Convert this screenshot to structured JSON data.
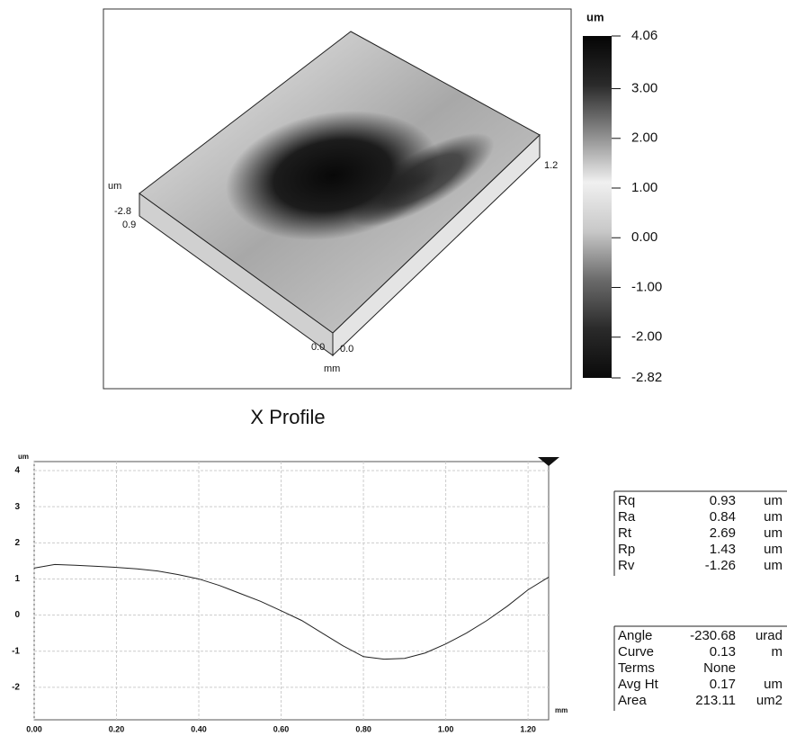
{
  "chart_data": [
    {
      "type": "surface",
      "zlabel": "um",
      "xlabel": "mm",
      "zticks": [
        -2.8
      ],
      "yticks": [
        {
          "value": 0,
          "label": "0.0"
        },
        0.9
      ],
      "xticks": [
        {
          "value": 0,
          "label": "0.0"
        },
        1.2
      ]
    },
    {
      "type": "colorbar",
      "label": "um",
      "ylim": [
        -2.82,
        4.06
      ],
      "yticks": [
        4.06,
        {
          "value": 3,
          "label": "3.00"
        },
        {
          "value": 2,
          "label": "2.00"
        },
        {
          "value": 1,
          "label": "1.00"
        },
        {
          "value": 0,
          "label": "0.00"
        },
        {
          "value": -1,
          "label": "-1.00"
        },
        {
          "value": -2,
          "label": "-2.00"
        },
        -2.82
      ],
      "colormap": [
        "#050505",
        "#2a2a2a",
        "#8a8a8a",
        "#f0f0f0",
        "#c8c8c8",
        "#6a6a6a",
        "#2a2a2a",
        "#0a0a0a"
      ]
    },
    {
      "type": "line",
      "title": "X Profile",
      "xlabel": "mm",
      "ylabel": "um",
      "color": "#222222",
      "grid": true,
      "x": [
        0,
        0.05,
        0.1,
        0.15,
        0.2,
        0.25,
        0.3,
        0.35,
        0.4,
        0.45,
        0.5,
        0.55,
        0.6,
        0.65,
        0.7,
        0.75,
        0.8,
        0.85,
        0.9,
        0.95,
        1.0,
        1.05,
        1.1,
        1.15,
        1.2,
        1.25
      ],
      "values": [
        1.3,
        1.4,
        1.38,
        1.35,
        1.32,
        1.28,
        1.22,
        1.12,
        1.0,
        0.82,
        0.6,
        0.38,
        0.12,
        -0.15,
        -0.5,
        -0.85,
        -1.15,
        -1.22,
        -1.2,
        -1.05,
        -0.8,
        -0.5,
        -0.15,
        0.25,
        0.7,
        1.05
      ],
      "xlim": [
        0,
        1.25
      ],
      "ylim": [
        -2.9,
        4.25
      ],
      "xticks": [
        {
          "value": 0,
          "label": "0.00"
        },
        {
          "value": 0.2,
          "label": "0.20"
        },
        {
          "value": 0.4,
          "label": "0.40"
        },
        {
          "value": 0.6,
          "label": "0.60"
        },
        {
          "value": 0.8,
          "label": "0.80"
        },
        {
          "value": 1,
          "label": "1.00"
        },
        {
          "value": 1.2,
          "label": "1.20"
        }
      ],
      "yticks": [
        4,
        3,
        2,
        1,
        0,
        -1,
        -2
      ]
    }
  ],
  "stats": {
    "rows": [
      [
        "Rq",
        "0.93",
        "um"
      ],
      [
        "Ra",
        "0.84",
        "um"
      ],
      [
        "Rt",
        "2.69",
        "um"
      ],
      [
        "Rp",
        "1.43",
        "um"
      ],
      [
        "Rv",
        "-1.26",
        "um"
      ]
    ]
  },
  "settings": {
    "rows": [
      [
        "Angle",
        "-230.68",
        "urad"
      ],
      [
        "Curve",
        "0.13",
        "m"
      ],
      [
        "Terms",
        "None"
      ],
      [
        "Avg Ht",
        "0.17",
        "um"
      ],
      [
        "Area",
        "213.11",
        "um2"
      ]
    ]
  }
}
